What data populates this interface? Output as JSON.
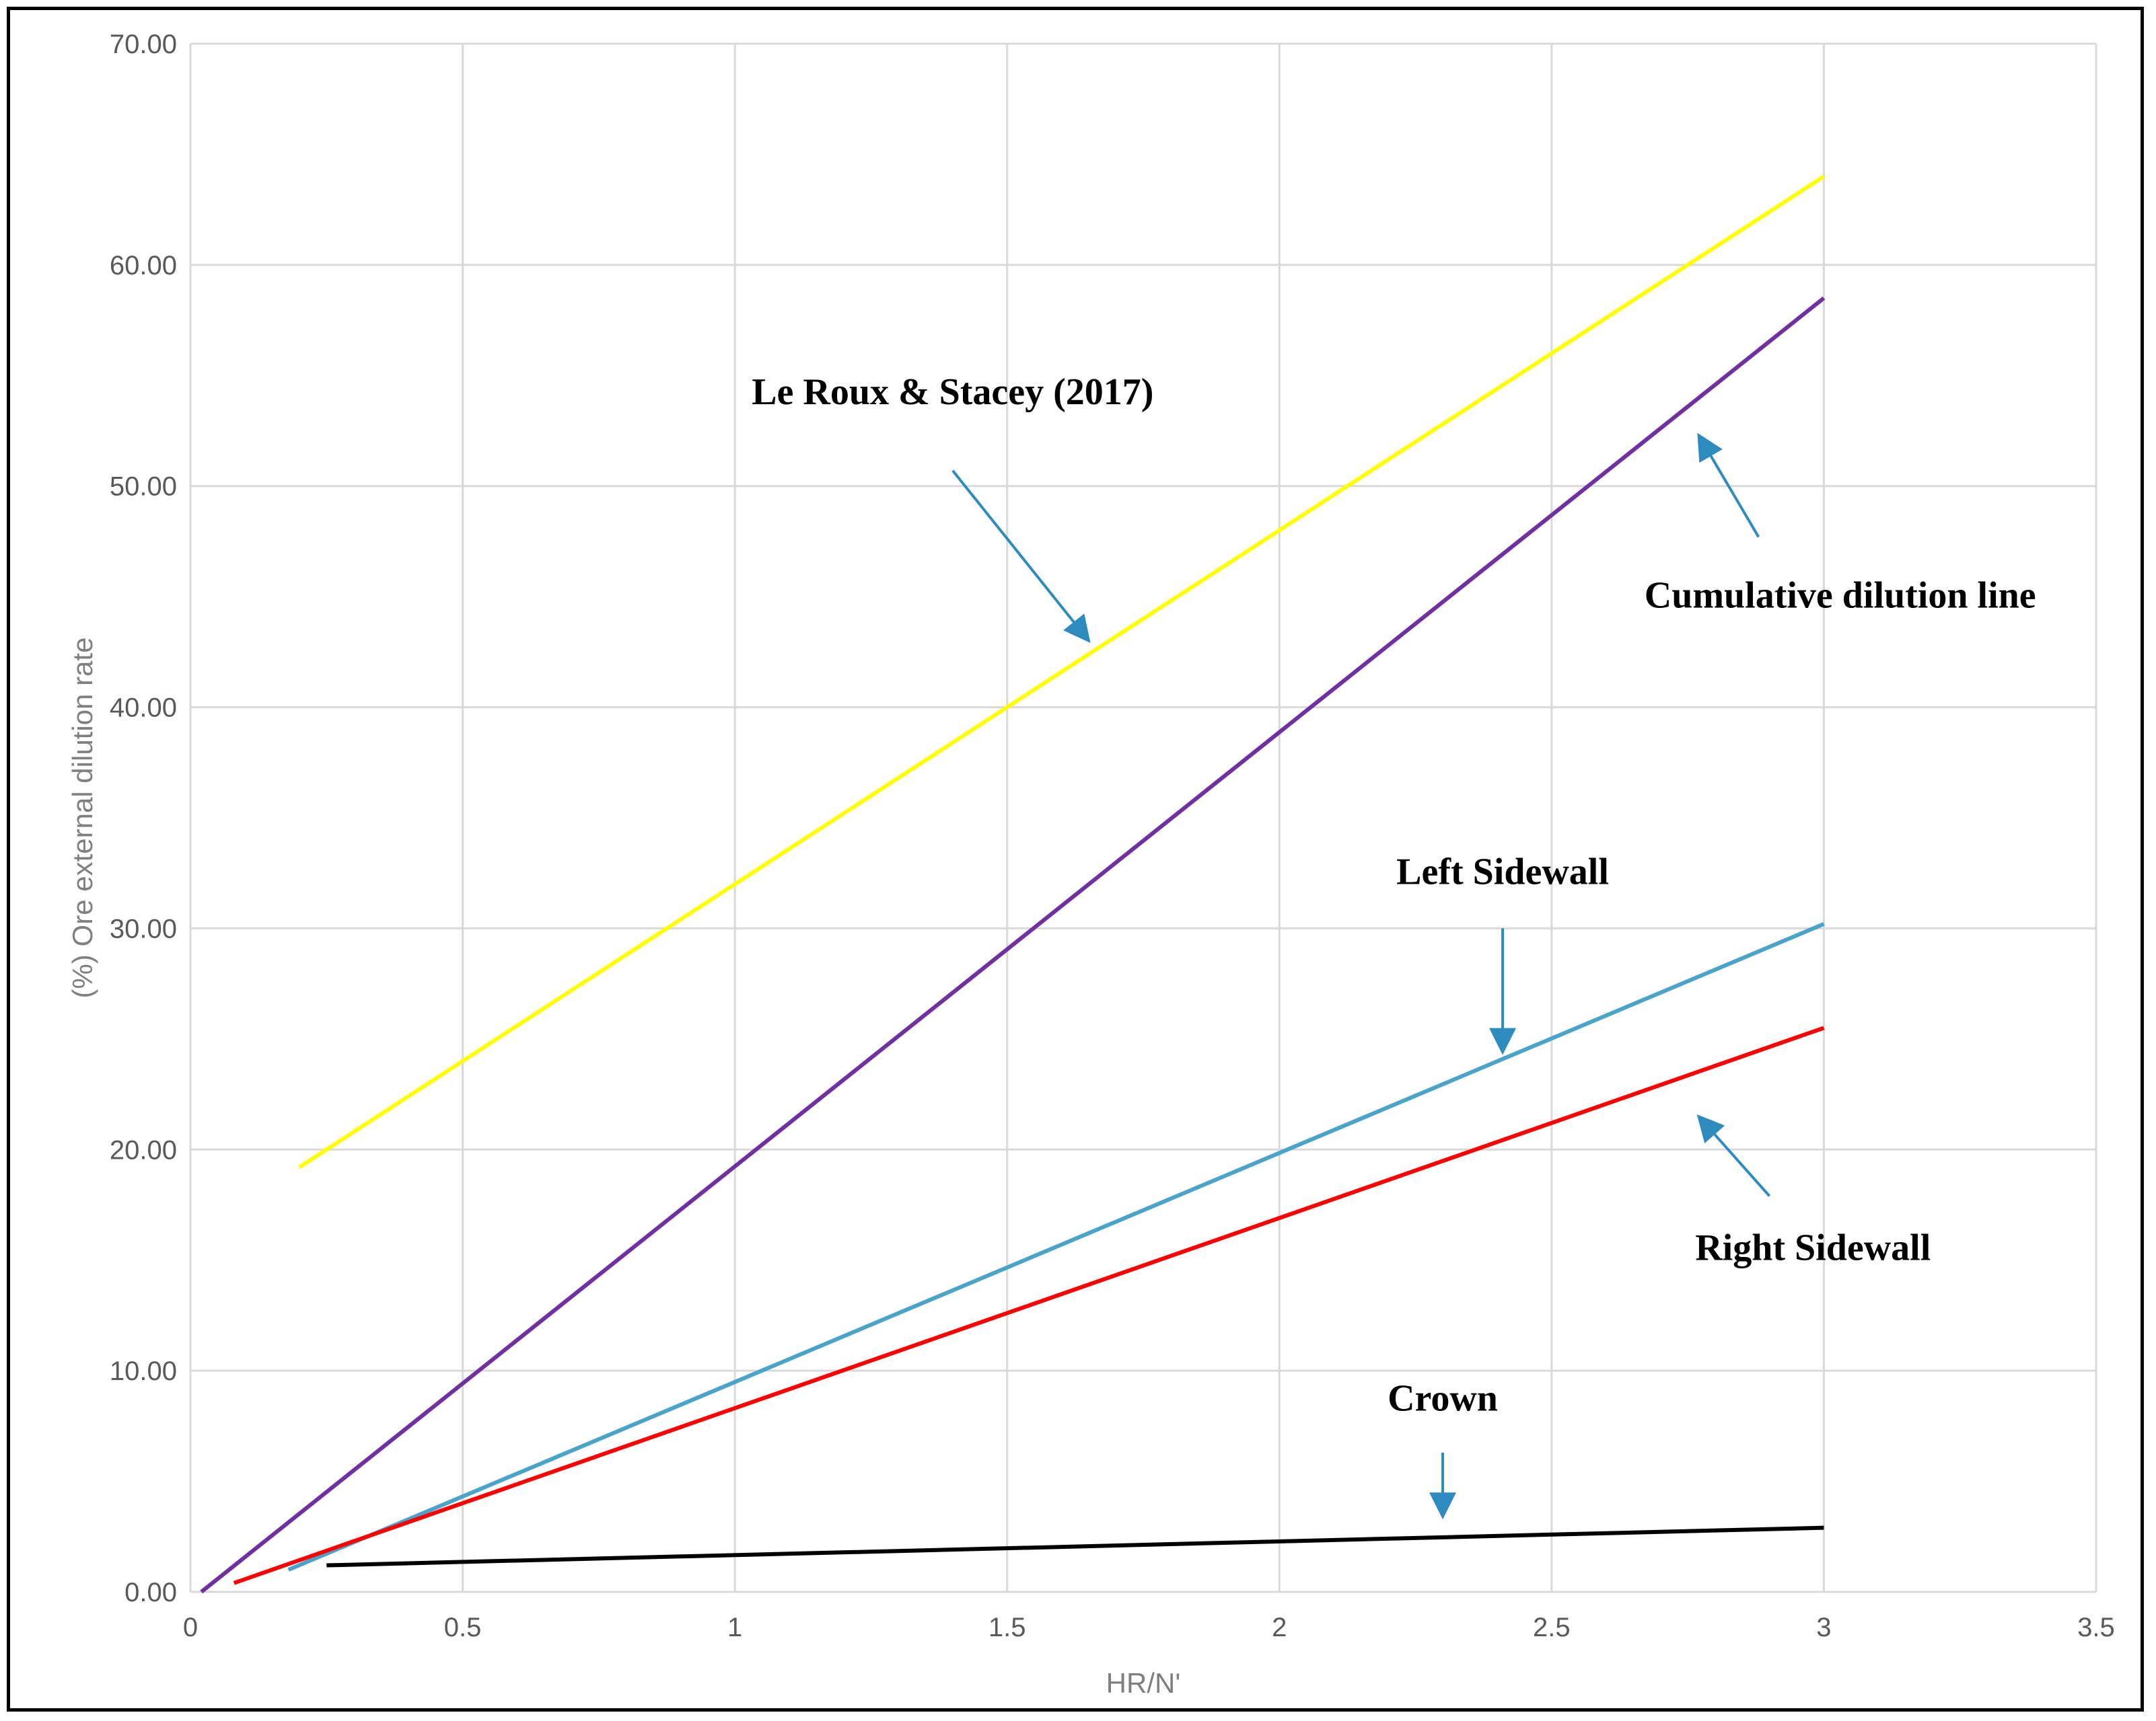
{
  "chart_data": {
    "type": "line",
    "title": "",
    "xlabel": "HR/N'",
    "ylabel": "(%) Ore external dilution rate",
    "xlim": [
      0,
      3.5
    ],
    "ylim": [
      0,
      70
    ],
    "x_ticks": [
      "0",
      "0.5",
      "1",
      "1.5",
      "2",
      "2.5",
      "3",
      "3.5"
    ],
    "y_ticks": [
      "0.00",
      "10.00",
      "20.00",
      "30.00",
      "40.00",
      "50.00",
      "60.00",
      "70.00"
    ],
    "grid": true,
    "series": [
      {
        "name": "Le Roux & Stacey (2017)",
        "color": "#ffff00",
        "x": [
          0.2,
          3.0
        ],
        "y": [
          19.2,
          64.0
        ]
      },
      {
        "name": "Cumulative dilution line",
        "color": "#7030a0",
        "x": [
          0.02,
          3.0
        ],
        "y": [
          0.0,
          58.5
        ]
      },
      {
        "name": "Left Sidewall",
        "color": "#4aa3c8",
        "x": [
          0.18,
          3.0
        ],
        "y": [
          1.0,
          30.2
        ]
      },
      {
        "name": "Right Sidewall",
        "color": "#ff0000",
        "x": [
          0.08,
          3.0
        ],
        "y": [
          0.4,
          25.5
        ]
      },
      {
        "name": "Crown",
        "color": "#000000",
        "x": [
          0.25,
          3.0
        ],
        "y": [
          1.2,
          2.9
        ]
      }
    ],
    "annotations": [
      {
        "text": "Le Roux & Stacey (2017)",
        "target": "Le Roux & Stacey (2017)",
        "arrow_color": "#2e8bc0"
      },
      {
        "text": "Cumulative dilution line",
        "target": "Cumulative dilution line",
        "arrow_color": "#2e8bc0"
      },
      {
        "text": "Left Sidewall",
        "target": "Left Sidewall",
        "arrow_color": "#2e8bc0"
      },
      {
        "text": "Right Sidewall",
        "target": "Right Sidewall",
        "arrow_color": "#2e8bc0"
      },
      {
        "text": "Crown",
        "target": "Crown",
        "arrow_color": "#2e8bc0"
      }
    ]
  }
}
